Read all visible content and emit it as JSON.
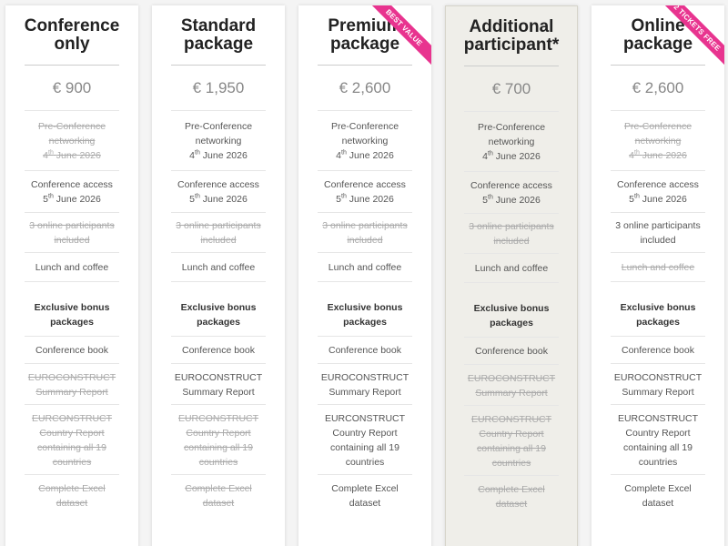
{
  "plans": [
    {
      "title": "Conference only",
      "price": "€ 900",
      "features": [
        {
          "text": "Pre-Conference networking",
          "day": "4",
          "ordinal": "th",
          "date": "June 2026",
          "included": false
        },
        {
          "text": "Conference access",
          "day": "5",
          "ordinal": "th",
          "date": "June 2026",
          "included": true
        },
        {
          "text": "3 online participants included",
          "included": false
        },
        {
          "text": "Lunch and coffee",
          "included": true
        },
        {
          "text": "Exclusive bonus packages",
          "heading": true,
          "included": true
        },
        {
          "text": "Conference book",
          "included": true
        },
        {
          "text": "EUROCONSTRUCT Summary Report",
          "included": false
        },
        {
          "text": "EURCONSTRUCT Country Report containing all 19 countries",
          "included": false
        },
        {
          "text": "Complete Excel dataset",
          "included": false
        }
      ]
    },
    {
      "title": "Standard package",
      "price": "€ 1,950",
      "features": [
        {
          "text": "Pre-Conference networking",
          "day": "4",
          "ordinal": "th",
          "date": "June 2026",
          "included": true
        },
        {
          "text": "Conference access",
          "day": "5",
          "ordinal": "th",
          "date": "June 2026",
          "included": true
        },
        {
          "text": "3 online participants included",
          "included": false
        },
        {
          "text": "Lunch and coffee",
          "included": true
        },
        {
          "text": "Exclusive bonus packages",
          "heading": true,
          "included": true
        },
        {
          "text": "Conference book",
          "included": true
        },
        {
          "text": "EUROCONSTRUCT Summary Report",
          "included": true
        },
        {
          "text": "EURCONSTRUCT Country Report containing all 19 countries",
          "included": false
        },
        {
          "text": "Complete Excel dataset",
          "included": false
        }
      ]
    },
    {
      "title": "Premium package",
      "price": "€ 2,600",
      "ribbon": "BEST VALUE",
      "features": [
        {
          "text": "Pre-Conference networking",
          "day": "4",
          "ordinal": "th",
          "date": "June 2026",
          "included": true
        },
        {
          "text": "Conference access",
          "day": "5",
          "ordinal": "th",
          "date": "June 2026",
          "included": true
        },
        {
          "text": "3 online participants included",
          "included": false
        },
        {
          "text": "Lunch and coffee",
          "included": true
        },
        {
          "text": "Exclusive bonus packages",
          "heading": true,
          "included": true
        },
        {
          "text": "Conference book",
          "included": true
        },
        {
          "text": "EUROCONSTRUCT Summary Report",
          "included": true
        },
        {
          "text": "EURCONSTRUCT Country Report containing all 19 countries",
          "included": true
        },
        {
          "text": "Complete Excel dataset",
          "included": true
        }
      ]
    },
    {
      "title": "Additional participant*",
      "price": "€ 700",
      "highlighted": true,
      "features": [
        {
          "text": "Pre-Conference networking",
          "day": "4",
          "ordinal": "th",
          "date": "June 2026",
          "included": true
        },
        {
          "text": "Conference access",
          "day": "5",
          "ordinal": "th",
          "date": "June 2026",
          "included": true
        },
        {
          "text": "3 online participants included",
          "included": false
        },
        {
          "text": "Lunch and coffee",
          "included": true
        },
        {
          "text": "Exclusive bonus packages",
          "heading": true,
          "included": true
        },
        {
          "text": "Conference book",
          "included": true
        },
        {
          "text": "EUROCONSTRUCT Summary Report",
          "included": false
        },
        {
          "text": "EURCONSTRUCT Country Report containing all 19 countries",
          "included": false
        },
        {
          "text": "Complete Excel dataset",
          "included": false
        }
      ]
    },
    {
      "title": "Online package",
      "price": "€ 2,600",
      "ribbon": "2 TICKETS FREE",
      "features": [
        {
          "text": "Pre-Conference networking",
          "day": "4",
          "ordinal": "th",
          "date": "June 2026",
          "included": false
        },
        {
          "text": "Conference access",
          "day": "5",
          "ordinal": "th",
          "date": "June 2026",
          "included": true
        },
        {
          "text": "3 online participants included",
          "included": true
        },
        {
          "text": "Lunch and coffee",
          "included": false
        },
        {
          "text": "Exclusive bonus packages",
          "heading": true,
          "included": true
        },
        {
          "text": "Conference book",
          "included": true
        },
        {
          "text": "EUROCONSTRUCT Summary Report",
          "included": true
        },
        {
          "text": "EURCONSTRUCT Country Report containing all 19 countries",
          "included": true
        },
        {
          "text": "Complete Excel dataset",
          "included": true
        }
      ]
    }
  ]
}
